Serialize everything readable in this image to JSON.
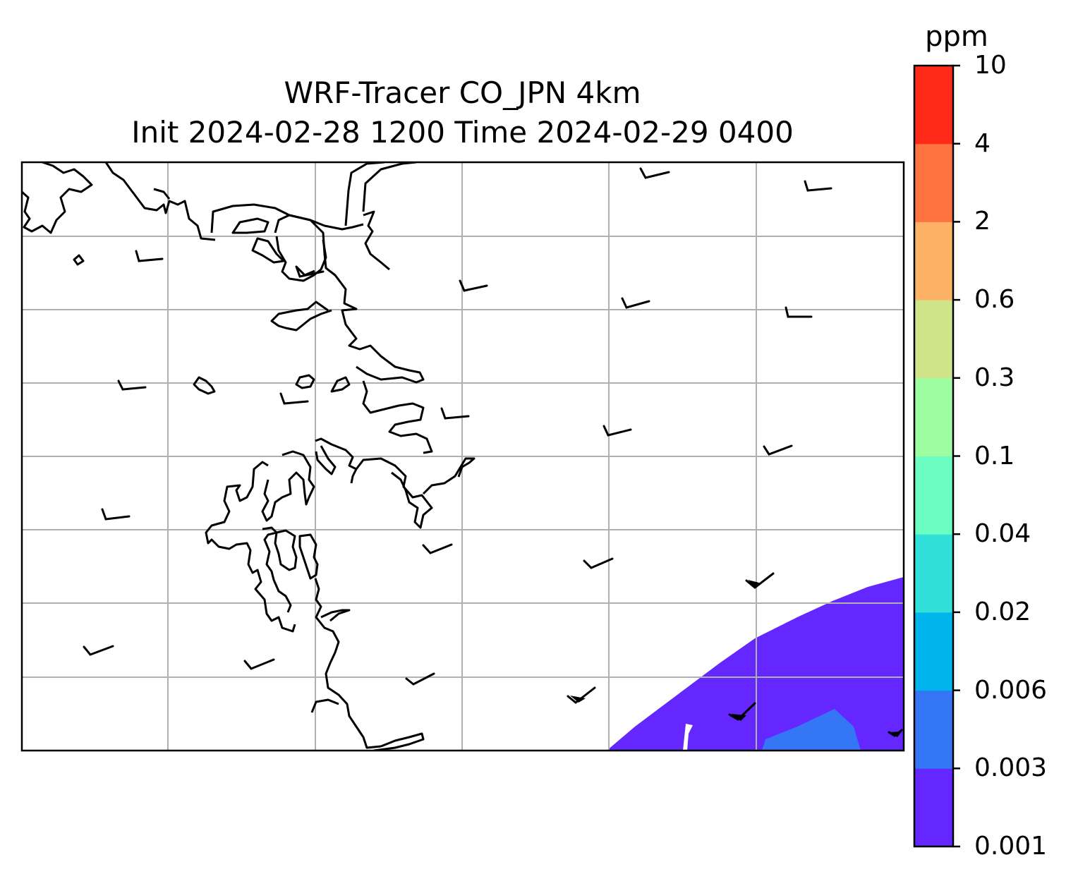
{
  "title": {
    "line1": "WRF-Tracer CO_JPN 4km",
    "line2": "Init 2024-02-28 1200 Time 2024-02-29 0400"
  },
  "colorbar": {
    "unit": "ppm",
    "levels": [
      "0.001",
      "0.003",
      "0.006",
      "0.02",
      "0.04",
      "0.1",
      "0.3",
      "0.6",
      "2",
      "4",
      "10"
    ],
    "colors": [
      "#6427ff",
      "#3476f6",
      "#00b5eb",
      "#31e1d9",
      "#6affc0",
      "#9cfea1",
      "#cfe389",
      "#feb265",
      "#ff7340",
      "#ff2a17"
    ]
  },
  "map": {
    "background": "#ffffff",
    "gridlines": true,
    "grid_color": "#b0b0b0",
    "coastline_color": "#000000",
    "field_levels_present": [
      "0.001-0.003",
      "0.003-0.006"
    ],
    "overlay": "wind barbs"
  }
}
